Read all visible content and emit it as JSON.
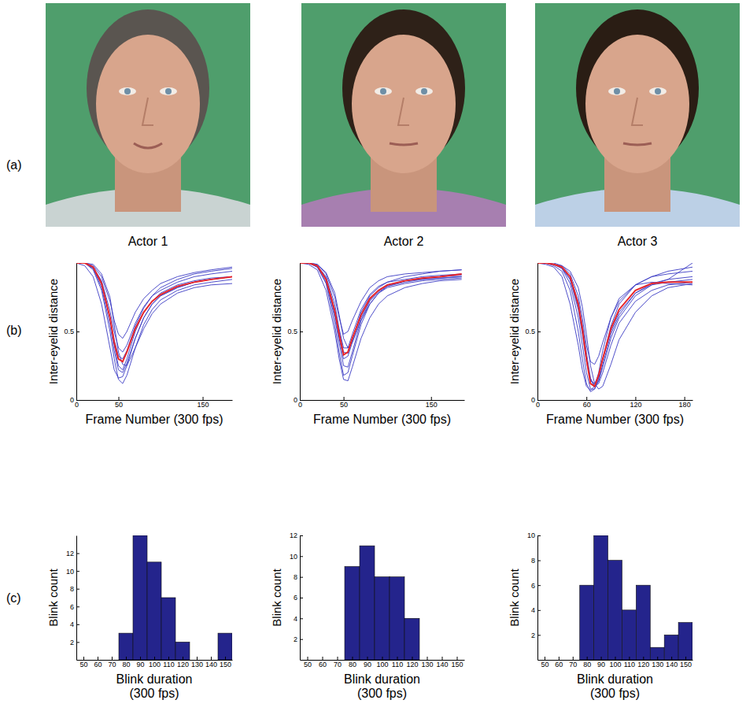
{
  "figure": {
    "row_labels": [
      "(a)",
      "(b)",
      "(c)"
    ],
    "actors": [
      "Actor 1",
      "Actor 2",
      "Actor 3"
    ]
  },
  "chart_data": [
    {
      "type": "line",
      "x_label": "Frame Number (300 fps)",
      "y_label": "Inter-eyelid distance",
      "x": [
        0,
        10,
        20,
        30,
        40,
        45,
        50,
        55,
        60,
        70,
        80,
        90,
        100,
        120,
        140,
        160,
        185
      ],
      "xlim": [
        0,
        185
      ],
      "xticks": [
        0,
        50,
        150
      ],
      "ylim": [
        0,
        1
      ],
      "yticks": [
        0,
        0.5
      ],
      "series": [
        {
          "color": "#3b3bc4",
          "values": [
            1.0,
            1.0,
            0.95,
            0.8,
            0.5,
            0.3,
            0.15,
            0.12,
            0.18,
            0.38,
            0.55,
            0.66,
            0.73,
            0.8,
            0.84,
            0.86,
            0.88
          ]
        },
        {
          "color": "#3b3bc4",
          "values": [
            1.0,
            1.0,
            0.96,
            0.82,
            0.55,
            0.36,
            0.22,
            0.2,
            0.27,
            0.45,
            0.6,
            0.7,
            0.76,
            0.82,
            0.86,
            0.88,
            0.9
          ]
        },
        {
          "color": "#3b3bc4",
          "values": [
            1.0,
            1.0,
            0.98,
            0.9,
            0.72,
            0.58,
            0.48,
            0.45,
            0.5,
            0.64,
            0.74,
            0.8,
            0.85,
            0.9,
            0.93,
            0.95,
            0.97
          ]
        },
        {
          "color": "#3b3bc4",
          "values": [
            1.0,
            1.0,
            0.97,
            0.87,
            0.65,
            0.5,
            0.38,
            0.35,
            0.4,
            0.56,
            0.68,
            0.76,
            0.8,
            0.86,
            0.9,
            0.92,
            0.94
          ]
        },
        {
          "color": "#3b3bc4",
          "values": [
            1.0,
            1.0,
            0.99,
            0.92,
            0.75,
            0.55,
            0.35,
            0.26,
            0.25,
            0.38,
            0.52,
            0.63,
            0.7,
            0.78,
            0.82,
            0.84,
            0.85
          ]
        },
        {
          "color": "#3b3bc4",
          "values": [
            1.0,
            0.98,
            0.9,
            0.7,
            0.38,
            0.22,
            0.16,
            0.17,
            0.25,
            0.45,
            0.6,
            0.7,
            0.76,
            0.82,
            0.86,
            0.88,
            0.9
          ]
        },
        {
          "color": "#3b3bc4",
          "values": [
            1.0,
            1.0,
            0.96,
            0.84,
            0.6,
            0.44,
            0.32,
            0.3,
            0.36,
            0.54,
            0.67,
            0.76,
            0.82,
            0.88,
            0.92,
            0.94,
            0.96
          ]
        },
        {
          "color": "#3b3bc4",
          "values": [
            1.0,
            1.0,
            0.97,
            0.86,
            0.6,
            0.4,
            0.25,
            0.22,
            0.3,
            0.5,
            0.64,
            0.72,
            0.78,
            0.84,
            0.87,
            0.89,
            0.9
          ]
        },
        {
          "color": "#e8262a",
          "values": [
            1.0,
            1.0,
            0.97,
            0.85,
            0.6,
            0.42,
            0.3,
            0.28,
            0.35,
            0.52,
            0.64,
            0.72,
            0.77,
            0.83,
            0.86,
            0.88,
            0.9
          ]
        }
      ]
    },
    {
      "type": "line",
      "x_label": "Frame Number (300 fps)",
      "y_label": "Inter-eyelid distance",
      "x": [
        0,
        10,
        20,
        30,
        40,
        45,
        50,
        55,
        60,
        70,
        80,
        90,
        100,
        120,
        140,
        160,
        185
      ],
      "xlim": [
        0,
        188
      ],
      "xticks": [
        0,
        50,
        150
      ],
      "ylim": [
        0,
        1
      ],
      "yticks": [
        0,
        0.5
      ],
      "series": [
        {
          "color": "#3b3bc4",
          "values": [
            1.0,
            1.0,
            0.97,
            0.85,
            0.55,
            0.35,
            0.18,
            0.2,
            0.32,
            0.55,
            0.7,
            0.78,
            0.83,
            0.87,
            0.89,
            0.9,
            0.91
          ]
        },
        {
          "color": "#3b3bc4",
          "values": [
            1.0,
            1.0,
            0.98,
            0.88,
            0.62,
            0.45,
            0.3,
            0.32,
            0.42,
            0.6,
            0.73,
            0.8,
            0.84,
            0.87,
            0.88,
            0.89,
            0.9
          ]
        },
        {
          "color": "#3b3bc4",
          "values": [
            1.0,
            1.0,
            0.99,
            0.92,
            0.75,
            0.6,
            0.48,
            0.5,
            0.58,
            0.72,
            0.82,
            0.87,
            0.9,
            0.92,
            0.93,
            0.94,
            0.95
          ]
        },
        {
          "color": "#3b3bc4",
          "values": [
            1.0,
            1.0,
            0.97,
            0.86,
            0.6,
            0.42,
            0.25,
            0.24,
            0.35,
            0.58,
            0.72,
            0.79,
            0.83,
            0.86,
            0.88,
            0.89,
            0.9
          ]
        },
        {
          "color": "#3b3bc4",
          "values": [
            1.0,
            1.0,
            0.98,
            0.9,
            0.7,
            0.52,
            0.38,
            0.38,
            0.48,
            0.66,
            0.77,
            0.83,
            0.86,
            0.88,
            0.9,
            0.91,
            0.92
          ]
        },
        {
          "color": "#3b3bc4",
          "values": [
            1.0,
            0.99,
            0.95,
            0.8,
            0.5,
            0.3,
            0.15,
            0.14,
            0.24,
            0.45,
            0.6,
            0.7,
            0.76,
            0.82,
            0.85,
            0.87,
            0.88
          ]
        },
        {
          "color": "#3b3bc4",
          "values": [
            1.0,
            1.0,
            0.98,
            0.89,
            0.66,
            0.5,
            0.35,
            0.34,
            0.44,
            0.64,
            0.76,
            0.82,
            0.86,
            0.9,
            0.92,
            0.94,
            0.95
          ]
        },
        {
          "color": "#3b3bc4",
          "values": [
            1.0,
            1.0,
            0.99,
            0.93,
            0.78,
            0.62,
            0.45,
            0.38,
            0.42,
            0.58,
            0.7,
            0.78,
            0.82,
            0.85,
            0.87,
            0.88,
            0.89
          ]
        },
        {
          "color": "#e8262a",
          "values": [
            1.0,
            1.0,
            0.98,
            0.88,
            0.65,
            0.48,
            0.33,
            0.35,
            0.45,
            0.62,
            0.74,
            0.8,
            0.84,
            0.87,
            0.89,
            0.9,
            0.92
          ]
        }
      ]
    },
    {
      "type": "line",
      "x_label": "Frame Number (300 fps)",
      "y_label": "Inter-eyelid distance",
      "x": [
        0,
        10,
        20,
        30,
        40,
        50,
        55,
        60,
        65,
        70,
        75,
        80,
        90,
        100,
        120,
        140,
        160,
        190
      ],
      "xlim": [
        0,
        190
      ],
      "xticks": [
        0,
        60,
        120,
        180
      ],
      "ylim": [
        0,
        1
      ],
      "yticks": [
        0,
        0.5
      ],
      "series": [
        {
          "color": "#3b3bc4",
          "values": [
            1.0,
            1.0,
            0.99,
            0.96,
            0.85,
            0.6,
            0.4,
            0.2,
            0.08,
            0.08,
            0.14,
            0.26,
            0.48,
            0.62,
            0.78,
            0.84,
            0.86,
            0.88
          ]
        },
        {
          "color": "#3b3bc4",
          "values": [
            1.0,
            1.0,
            1.0,
            0.98,
            0.92,
            0.76,
            0.6,
            0.4,
            0.28,
            0.26,
            0.32,
            0.42,
            0.6,
            0.72,
            0.84,
            0.9,
            0.92,
            0.94
          ]
        },
        {
          "color": "#3b3bc4",
          "values": [
            1.0,
            1.0,
            0.98,
            0.94,
            0.8,
            0.5,
            0.3,
            0.12,
            0.06,
            0.08,
            0.16,
            0.3,
            0.54,
            0.7,
            0.84,
            0.9,
            0.94,
            0.97
          ]
        },
        {
          "color": "#3b3bc4",
          "values": [
            1.0,
            1.0,
            0.99,
            0.97,
            0.9,
            0.72,
            0.55,
            0.35,
            0.16,
            0.1,
            0.12,
            0.2,
            0.4,
            0.56,
            0.72,
            0.8,
            0.84,
            0.86
          ]
        },
        {
          "color": "#3b3bc4",
          "values": [
            1.0,
            1.0,
            0.99,
            0.98,
            0.94,
            0.82,
            0.68,
            0.48,
            0.25,
            0.12,
            0.08,
            0.1,
            0.26,
            0.44,
            0.64,
            0.76,
            0.82,
            0.85
          ]
        },
        {
          "color": "#3b3bc4",
          "values": [
            1.0,
            1.0,
            0.99,
            0.96,
            0.88,
            0.66,
            0.48,
            0.28,
            0.14,
            0.12,
            0.18,
            0.3,
            0.5,
            0.64,
            0.78,
            0.85,
            0.88,
            0.9
          ]
        },
        {
          "color": "#3b3bc4",
          "values": [
            1.0,
            1.0,
            0.99,
            0.97,
            0.88,
            0.68,
            0.5,
            0.3,
            0.15,
            0.1,
            0.14,
            0.24,
            0.45,
            0.6,
            0.76,
            0.84,
            0.88,
            1.0
          ]
        },
        {
          "color": "#3b3bc4",
          "values": [
            1.0,
            0.99,
            0.97,
            0.9,
            0.7,
            0.4,
            0.22,
            0.1,
            0.07,
            0.1,
            0.2,
            0.36,
            0.6,
            0.74,
            0.84,
            0.86,
            0.85,
            0.84
          ]
        },
        {
          "color": "#e8262a",
          "values": [
            1.0,
            1.0,
            0.99,
            0.97,
            0.9,
            0.7,
            0.52,
            0.3,
            0.12,
            0.1,
            0.18,
            0.3,
            0.52,
            0.66,
            0.8,
            0.85,
            0.86,
            0.86
          ]
        }
      ]
    },
    {
      "type": "histogram",
      "x_label": "Blink duration\n(300 fps)",
      "y_label": "Blink count",
      "color": "#24248c",
      "bins": [
        45,
        55,
        65,
        75,
        85,
        95,
        105,
        115,
        125,
        135,
        145,
        155
      ],
      "values": [
        0,
        0,
        0,
        3,
        14,
        11,
        7,
        2,
        0,
        0,
        3
      ],
      "xlim": [
        45,
        155
      ],
      "xticks": [
        50,
        60,
        70,
        80,
        90,
        100,
        110,
        120,
        130,
        140,
        150
      ],
      "ylim": [
        0,
        14
      ],
      "yticks": [
        2,
        4,
        6,
        8,
        10,
        12
      ]
    },
    {
      "type": "histogram",
      "x_label": "Blink duration\n(300 fps)",
      "y_label": "Blink count",
      "color": "#24248c",
      "bins": [
        45,
        55,
        65,
        75,
        85,
        95,
        105,
        115,
        125,
        135,
        145,
        155
      ],
      "values": [
        0,
        0,
        0,
        9,
        11,
        8,
        8,
        4,
        0,
        0,
        0
      ],
      "xlim": [
        45,
        155
      ],
      "xticks": [
        50,
        60,
        70,
        80,
        90,
        100,
        110,
        120,
        130,
        140,
        150
      ],
      "ylim": [
        0,
        12
      ],
      "yticks": [
        2,
        4,
        6,
        8,
        10,
        12
      ]
    },
    {
      "type": "histogram",
      "x_label": "Blink duration\n(300 fps)",
      "y_label": "Blink count",
      "color": "#24248c",
      "bins": [
        45,
        55,
        65,
        75,
        85,
        95,
        105,
        115,
        125,
        135,
        145,
        155
      ],
      "values": [
        0,
        0,
        0,
        6,
        10,
        8,
        4,
        6,
        1,
        2,
        3
      ],
      "xlim": [
        45,
        155
      ],
      "xticks": [
        50,
        60,
        70,
        80,
        90,
        100,
        110,
        120,
        130,
        140,
        150
      ],
      "ylim": [
        0,
        10
      ],
      "yticks": [
        2,
        4,
        6,
        8,
        10
      ]
    }
  ]
}
